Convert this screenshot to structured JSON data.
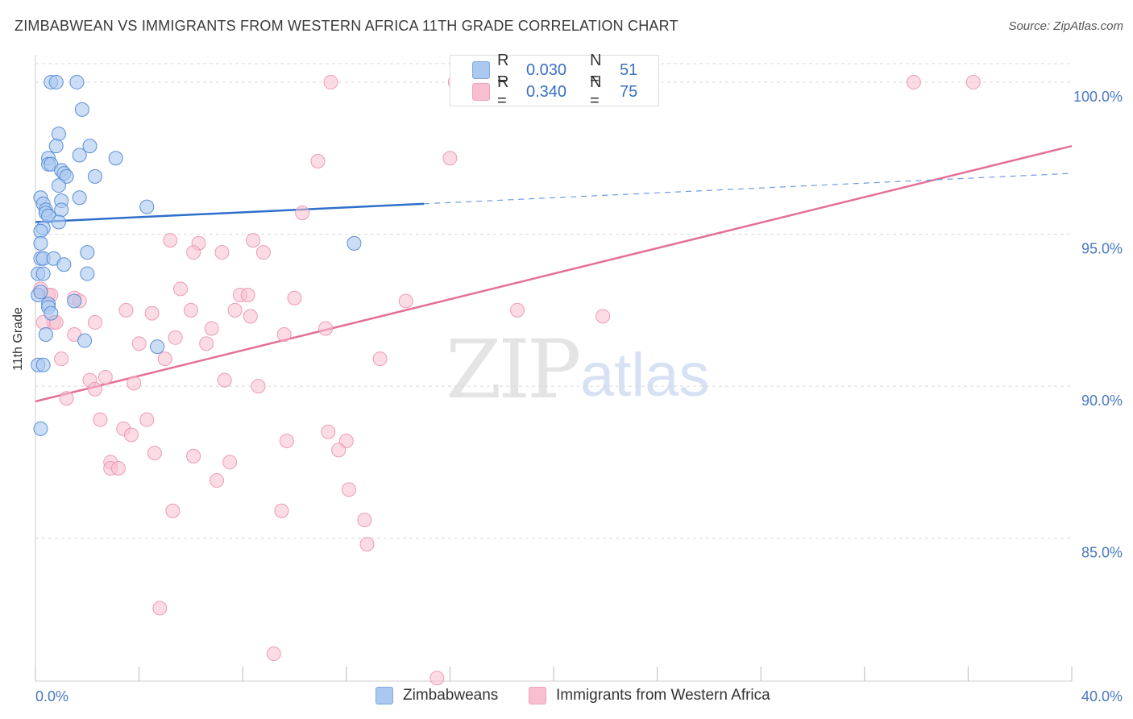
{
  "header": {
    "title": "ZIMBABWEAN VS IMMIGRANTS FROM WESTERN AFRICA 11TH GRADE CORRELATION CHART",
    "source": "Source: ZipAtlas.com"
  },
  "watermark": {
    "zip": "ZIP",
    "atlas": "atlas"
  },
  "legend": {
    "series1": {
      "r_label": "R = ",
      "r_value": "0.030",
      "n_label": "N = ",
      "n_value": "51",
      "color": "#aac8f0"
    },
    "series2": {
      "r_label": "R = ",
      "r_value": "0.340",
      "n_label": "N = ",
      "n_value": "75",
      "color": "#f7bfd0"
    }
  },
  "bottom_legend": {
    "series1_label": "Zimbabweans",
    "series2_label": "Immigrants from Western Africa"
  },
  "chart_data": {
    "type": "scatter",
    "title": "ZIMBABWEAN VS IMMIGRANTS FROM WESTERN AFRICA 11TH GRADE CORRELATION CHART",
    "xlabel": "",
    "ylabel": "11th Grade",
    "xlim": [
      0,
      40
    ],
    "ylim": [
      80.3,
      100.9
    ],
    "x_tick_labels": [
      "0.0%",
      "40.0%"
    ],
    "y_ticks": [
      85,
      90,
      95,
      100
    ],
    "y_tick_labels": [
      "85.0%",
      "90.0%",
      "95.0%",
      "100.0%"
    ],
    "grid": true,
    "series": [
      {
        "name": "Zimbabweans",
        "color": "#4a86d6",
        "fill": "#aac8f0",
        "trend": {
          "x0": 0.0,
          "y0": 95.4,
          "x1": 15.0,
          "y1": 96.0,
          "dash_to_x": 40.0,
          "dash_to_y": 97.0
        },
        "points": [
          [
            0.6,
            100.0
          ],
          [
            0.8,
            100.0
          ],
          [
            1.6,
            100.0
          ],
          [
            1.8,
            99.1
          ],
          [
            0.9,
            98.3
          ],
          [
            0.8,
            97.9
          ],
          [
            2.1,
            97.9
          ],
          [
            0.5,
            97.5
          ],
          [
            1.7,
            97.6
          ],
          [
            3.1,
            97.5
          ],
          [
            0.5,
            97.3
          ],
          [
            0.6,
            97.3
          ],
          [
            1.0,
            97.1
          ],
          [
            1.1,
            97.0
          ],
          [
            1.2,
            96.9
          ],
          [
            2.3,
            96.9
          ],
          [
            0.9,
            96.6
          ],
          [
            0.2,
            96.2
          ],
          [
            1.0,
            96.1
          ],
          [
            1.7,
            96.2
          ],
          [
            0.3,
            96.0
          ],
          [
            0.4,
            95.8
          ],
          [
            0.4,
            95.7
          ],
          [
            1.0,
            95.8
          ],
          [
            4.3,
            95.9
          ],
          [
            0.5,
            95.6
          ],
          [
            0.9,
            95.4
          ],
          [
            0.3,
            95.2
          ],
          [
            0.2,
            95.1
          ],
          [
            0.2,
            94.7
          ],
          [
            2.0,
            94.4
          ],
          [
            0.2,
            94.2
          ],
          [
            0.3,
            94.2
          ],
          [
            0.7,
            94.2
          ],
          [
            1.1,
            94.0
          ],
          [
            0.1,
            93.7
          ],
          [
            0.3,
            93.7
          ],
          [
            2.0,
            93.7
          ],
          [
            0.1,
            93.0
          ],
          [
            0.5,
            92.7
          ],
          [
            0.5,
            92.6
          ],
          [
            12.3,
            94.7
          ],
          [
            0.4,
            91.7
          ],
          [
            1.9,
            91.5
          ],
          [
            4.7,
            91.3
          ],
          [
            0.1,
            90.7
          ],
          [
            0.3,
            90.7
          ],
          [
            0.2,
            88.6
          ],
          [
            0.2,
            93.1
          ],
          [
            1.5,
            92.8
          ],
          [
            0.6,
            92.4
          ]
        ]
      },
      {
        "name": "Immigrants from Western Africa",
        "color": "#e46f99",
        "fill": "#f7bfd0",
        "trend": {
          "x0": 0.0,
          "y0": 89.5,
          "x1": 40.0,
          "y1": 97.9
        },
        "points": [
          [
            11.4,
            100.0
          ],
          [
            16.5,
            100.0
          ],
          [
            33.9,
            100.0
          ],
          [
            36.2,
            100.0
          ],
          [
            10.9,
            97.4
          ],
          [
            16.0,
            97.5
          ],
          [
            10.3,
            95.7
          ],
          [
            5.2,
            94.8
          ],
          [
            6.3,
            94.7
          ],
          [
            8.4,
            94.8
          ],
          [
            6.1,
            94.4
          ],
          [
            7.2,
            94.4
          ],
          [
            8.8,
            94.4
          ],
          [
            5.6,
            93.2
          ],
          [
            7.9,
            93.0
          ],
          [
            8.2,
            93.0
          ],
          [
            0.5,
            93.0
          ],
          [
            0.6,
            93.0
          ],
          [
            1.5,
            92.9
          ],
          [
            1.7,
            92.8
          ],
          [
            10.0,
            92.9
          ],
          [
            14.3,
            92.8
          ],
          [
            18.6,
            92.5
          ],
          [
            3.5,
            92.5
          ],
          [
            6.0,
            92.5
          ],
          [
            7.7,
            92.5
          ],
          [
            4.5,
            92.4
          ],
          [
            8.3,
            92.3
          ],
          [
            21.9,
            92.3
          ],
          [
            0.7,
            92.1
          ],
          [
            0.8,
            92.1
          ],
          [
            2.3,
            92.1
          ],
          [
            6.8,
            91.9
          ],
          [
            11.2,
            91.9
          ],
          [
            1.5,
            91.7
          ],
          [
            9.6,
            91.7
          ],
          [
            5.4,
            91.6
          ],
          [
            4.0,
            91.4
          ],
          [
            6.6,
            91.4
          ],
          [
            13.3,
            90.9
          ],
          [
            1.0,
            90.9
          ],
          [
            5.0,
            90.9
          ],
          [
            2.7,
            90.3
          ],
          [
            2.1,
            90.2
          ],
          [
            7.3,
            90.2
          ],
          [
            3.8,
            90.1
          ],
          [
            8.6,
            90.0
          ],
          [
            2.3,
            89.9
          ],
          [
            1.2,
            89.6
          ],
          [
            2.5,
            88.9
          ],
          [
            4.3,
            88.9
          ],
          [
            3.4,
            88.6
          ],
          [
            3.7,
            88.4
          ],
          [
            9.7,
            88.2
          ],
          [
            11.3,
            88.5
          ],
          [
            12.0,
            88.2
          ],
          [
            11.7,
            87.9
          ],
          [
            4.6,
            87.8
          ],
          [
            6.1,
            87.7
          ],
          [
            7.5,
            87.5
          ],
          [
            2.9,
            87.5
          ],
          [
            2.9,
            87.3
          ],
          [
            3.2,
            87.3
          ],
          [
            7.0,
            86.9
          ],
          [
            12.1,
            86.6
          ],
          [
            5.3,
            85.9
          ],
          [
            9.5,
            85.9
          ],
          [
            12.7,
            85.6
          ],
          [
            12.8,
            84.8
          ],
          [
            4.8,
            82.7
          ],
          [
            9.2,
            81.2
          ],
          [
            15.5,
            80.4
          ],
          [
            0.2,
            93.2
          ],
          [
            0.3,
            92.1
          ],
          [
            16.2,
            100.0
          ]
        ]
      }
    ]
  }
}
